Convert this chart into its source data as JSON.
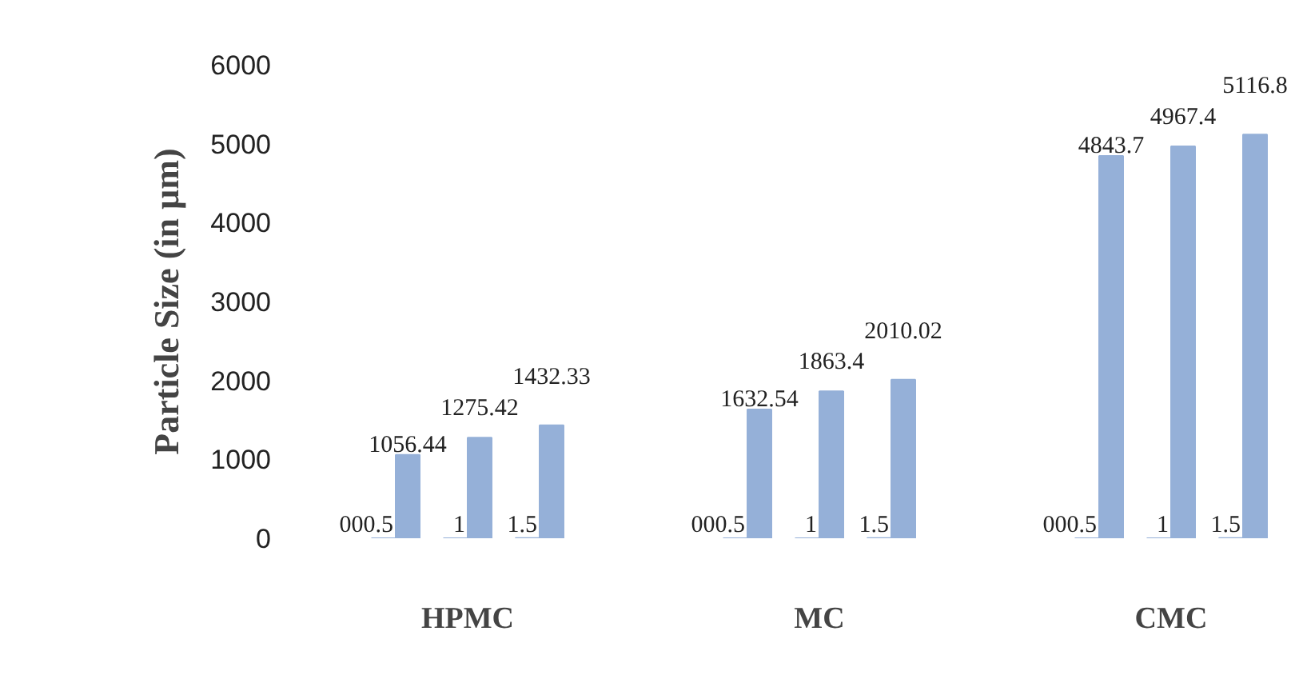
{
  "chart_data": {
    "type": "bar",
    "ylabel": "Particle Size (in µm)",
    "categories": [
      "HPMC",
      "MC",
      "CMC"
    ],
    "series": [
      {
        "color": "#95b0d8",
        "values": [
          0.5,
          0.5,
          0.5
        ],
        "value_labels": [
          "000.5",
          "000.5",
          "000.5"
        ]
      },
      {
        "color": "#95b0d8",
        "values": [
          1056.44,
          1632.54,
          4843.7
        ],
        "value_labels": [
          "1056.44",
          "1632.54",
          "4843.7"
        ]
      },
      {
        "color": "#95b0d8",
        "values": [
          1,
          1,
          1
        ],
        "value_labels": [
          "1",
          "1",
          "1"
        ]
      },
      {
        "color": "#95b0d8",
        "values": [
          1275.42,
          1863.4,
          4967.4
        ],
        "value_labels": [
          "1275.42",
          "1863.4",
          "4967.4"
        ]
      },
      {
        "color": "#95b0d8",
        "values": [
          1.5,
          1.5,
          1.5
        ],
        "value_labels": [
          "1.5",
          "1.5",
          "1.5"
        ]
      },
      {
        "color": "#95b0d8",
        "values": [
          1432.33,
          2010.02,
          5116.8
        ],
        "value_labels": [
          "1432.33",
          "2010.02",
          "5116.8"
        ]
      }
    ],
    "ylim": [
      0,
      6000
    ],
    "yticks": [
      0,
      1000,
      2000,
      3000,
      4000,
      5000,
      6000
    ],
    "grid": false
  }
}
